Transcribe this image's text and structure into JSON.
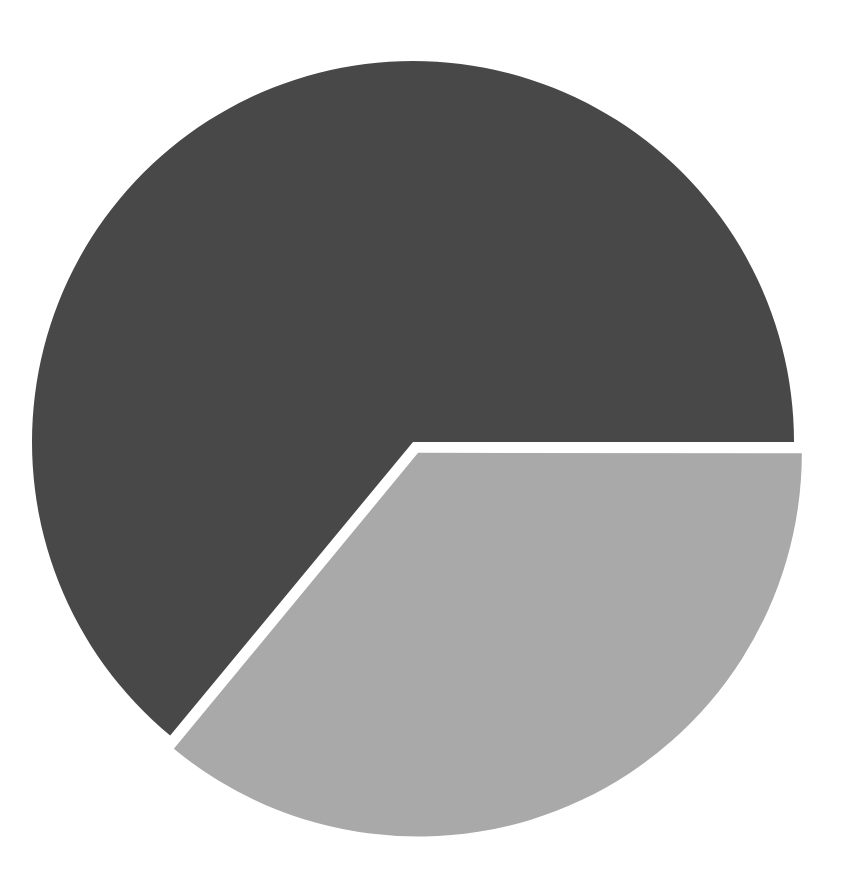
{
  "chart_data": {
    "type": "pie",
    "categories": [
      null,
      null
    ],
    "values": [
      36,
      64
    ],
    "colors": [
      "#a9a9a9",
      "#484848"
    ],
    "legend": false
  }
}
